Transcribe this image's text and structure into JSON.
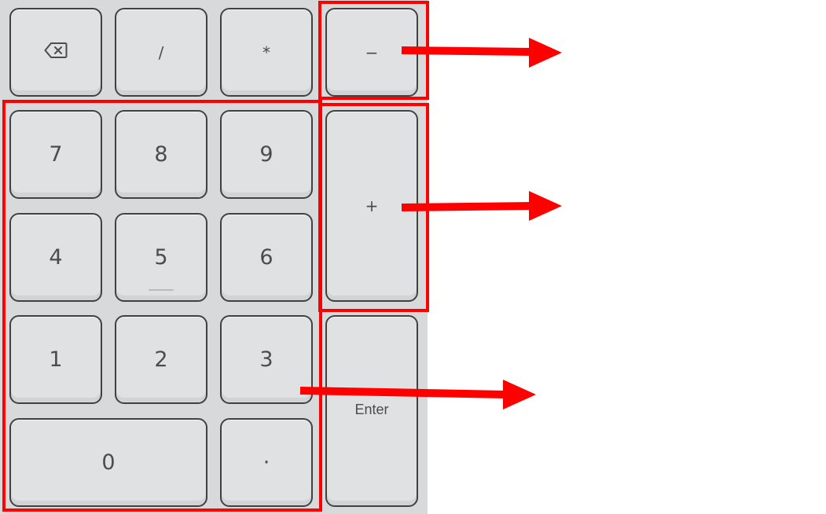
{
  "keypad": {
    "keys": {
      "backspace": {
        "label": "",
        "icon": "backspace-icon"
      },
      "divide": {
        "label": "/"
      },
      "multiply": {
        "label": "*"
      },
      "minus": {
        "label": "−"
      },
      "plus": {
        "label": "+"
      },
      "seven": {
        "label": "7"
      },
      "eight": {
        "label": "8"
      },
      "nine": {
        "label": "9"
      },
      "four": {
        "label": "4"
      },
      "five": {
        "label": "5"
      },
      "six": {
        "label": "6"
      },
      "one": {
        "label": "1"
      },
      "two": {
        "label": "2"
      },
      "three": {
        "label": "3"
      },
      "enter": {
        "label": "Enter"
      },
      "zero": {
        "label": "0"
      },
      "decimal": {
        "label": "·"
      }
    }
  },
  "annotations": {
    "color": "#ff0000",
    "outlines": [
      "minus-key",
      "plus-key",
      "number-keys"
    ],
    "arrows": [
      "arrow-minus",
      "arrow-plus",
      "arrow-numbers"
    ]
  }
}
